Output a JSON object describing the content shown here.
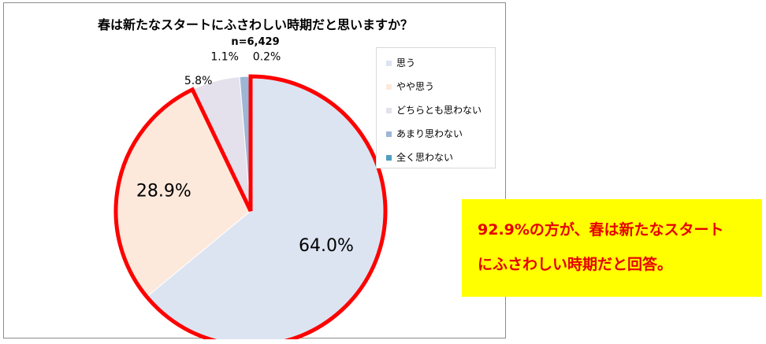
{
  "chart_data": {
    "type": "pie",
    "title": "春は新たなスタートにふさわしい時期だと思いますか？",
    "subtitle": "n=6,429",
    "categories": [
      "思う",
      "やや思う",
      "どちらとも思わない",
      "あまり思わない",
      "全く思わない"
    ],
    "values": [
      64.0,
      28.9,
      5.8,
      1.1,
      0.2
    ],
    "labels": [
      "64.0%",
      "28.9%",
      "5.8%",
      "1.1%",
      "0.2%"
    ],
    "colors": [
      "#dce4f2",
      "#fce9dc",
      "#e4e0ec",
      "#9db6d6",
      "#4f9fc0"
    ],
    "highlight_color": "#ff0000",
    "legend_position": "right"
  },
  "callout": {
    "line1": "92.9%の方が、春は新たなスタート",
    "line2": "にふさわしい時期だと回答。",
    "background": "#ffff00",
    "text_color": "#e60000"
  }
}
